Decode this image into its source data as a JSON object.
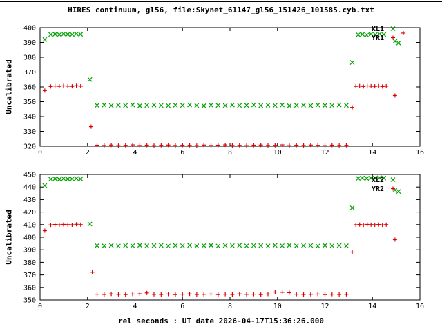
{
  "title": "HIRES continuum, gl56, file:Skynet_61147_gl56_151426_101585.cyb.txt",
  "xlabel": "rel seconds : UT date 2026-04-17T15:36:26.000",
  "colors": {
    "green": "#00a000",
    "red": "#e00000",
    "axis": "#000000",
    "background": "#ffffff"
  },
  "chart_data": [
    {
      "type": "scatter",
      "ylabel": "Uncalibrated",
      "xlim": [
        0,
        16
      ],
      "xtick_step": 2,
      "ylim": [
        320,
        400
      ],
      "ytick_step": 10,
      "grid": false,
      "legend_position": "top-right",
      "series": [
        {
          "name": "XL1",
          "marker": "x",
          "color": "#00a000",
          "points": [
            [
              0.2,
              392
            ],
            [
              0.45,
              395.4
            ],
            [
              0.63,
              395.6
            ],
            [
              0.81,
              395.3
            ],
            [
              0.99,
              395.7
            ],
            [
              1.17,
              395.5
            ],
            [
              1.35,
              395.4
            ],
            [
              1.53,
              395.8
            ],
            [
              1.71,
              395.5
            ],
            [
              2.1,
              365
            ],
            [
              2.4,
              347.6
            ],
            [
              2.7,
              347.8
            ],
            [
              3.0,
              347.4
            ],
            [
              3.3,
              347.7
            ],
            [
              3.6,
              347.5
            ],
            [
              3.9,
              347.9
            ],
            [
              4.2,
              347.3
            ],
            [
              4.5,
              347.6
            ],
            [
              4.8,
              347.8
            ],
            [
              5.1,
              347.5
            ],
            [
              5.4,
              347.4
            ],
            [
              5.7,
              347.7
            ],
            [
              6.0,
              347.6
            ],
            [
              6.3,
              347.9
            ],
            [
              6.6,
              347.5
            ],
            [
              6.9,
              347.3
            ],
            [
              7.2,
              347.7
            ],
            [
              7.5,
              347.6
            ],
            [
              7.8,
              347.4
            ],
            [
              8.1,
              347.8
            ],
            [
              8.4,
              347.5
            ],
            [
              8.7,
              347.6
            ],
            [
              9.0,
              347.9
            ],
            [
              9.3,
              347.4
            ],
            [
              9.6,
              347.7
            ],
            [
              9.9,
              347.5
            ],
            [
              10.2,
              347.8
            ],
            [
              10.5,
              347.3
            ],
            [
              10.8,
              347.6
            ],
            [
              11.1,
              347.7
            ],
            [
              11.4,
              347.4
            ],
            [
              11.7,
              347.8
            ],
            [
              12.0,
              347.6
            ],
            [
              12.3,
              347.5
            ],
            [
              12.6,
              347.9
            ],
            [
              12.9,
              347.6
            ],
            [
              13.15,
              376.5
            ],
            [
              13.4,
              395.2
            ],
            [
              13.58,
              395.5
            ],
            [
              13.76,
              395.0
            ],
            [
              13.94,
              395.6
            ],
            [
              14.12,
              395.3
            ],
            [
              14.3,
              395.7
            ],
            [
              14.48,
              395.4
            ],
            [
              14.95,
              390.8
            ],
            [
              15.1,
              389.6
            ]
          ]
        },
        {
          "name": "YR1",
          "marker": "+",
          "color": "#e00000",
          "points": [
            [
              0.2,
              357.5
            ],
            [
              0.45,
              360.3
            ],
            [
              0.63,
              360.6
            ],
            [
              0.81,
              360.4
            ],
            [
              0.99,
              360.7
            ],
            [
              1.17,
              360.5
            ],
            [
              1.35,
              360.4
            ],
            [
              1.53,
              360.8
            ],
            [
              1.71,
              360.5
            ],
            [
              2.15,
              333.2
            ],
            [
              2.4,
              320.7
            ],
            [
              2.7,
              320.5
            ],
            [
              3.0,
              320.8
            ],
            [
              3.3,
              320.4
            ],
            [
              3.6,
              320.6
            ],
            [
              3.9,
              320.9
            ],
            [
              4.2,
              320.5
            ],
            [
              4.5,
              320.7
            ],
            [
              4.8,
              320.4
            ],
            [
              5.1,
              320.6
            ],
            [
              5.4,
              320.8
            ],
            [
              5.7,
              320.5
            ],
            [
              6.0,
              320.7
            ],
            [
              6.3,
              320.6
            ],
            [
              6.6,
              320.4
            ],
            [
              6.9,
              320.8
            ],
            [
              7.2,
              320.5
            ],
            [
              7.5,
              320.7
            ],
            [
              7.8,
              320.9
            ],
            [
              8.1,
              320.5
            ],
            [
              8.4,
              320.6
            ],
            [
              8.7,
              320.4
            ],
            [
              9.0,
              320.7
            ],
            [
              9.3,
              320.8
            ],
            [
              9.6,
              320.5
            ],
            [
              9.9,
              320.6
            ],
            [
              10.2,
              320.9
            ],
            [
              10.5,
              320.4
            ],
            [
              10.8,
              320.7
            ],
            [
              11.1,
              320.5
            ],
            [
              11.4,
              320.8
            ],
            [
              11.7,
              320.6
            ],
            [
              12.0,
              320.4
            ],
            [
              12.3,
              320.7
            ],
            [
              12.6,
              320.5
            ],
            [
              12.9,
              320.6
            ],
            [
              13.15,
              346.2
            ],
            [
              13.3,
              360.4
            ],
            [
              13.46,
              360.6
            ],
            [
              13.62,
              360.3
            ],
            [
              13.78,
              360.7
            ],
            [
              13.94,
              360.5
            ],
            [
              14.1,
              360.4
            ],
            [
              14.26,
              360.6
            ],
            [
              14.42,
              360.3
            ],
            [
              14.58,
              360.5
            ],
            [
              14.95,
              354.2
            ],
            [
              15.3,
              396.3
            ]
          ]
        }
      ]
    },
    {
      "type": "scatter",
      "ylabel": "Uncalibrated",
      "xlim": [
        0,
        16
      ],
      "xtick_step": 2,
      "ylim": [
        350,
        450
      ],
      "ytick_step": 10,
      "grid": false,
      "legend_position": "top-right",
      "series": [
        {
          "name": "XL2",
          "marker": "x",
          "color": "#00a000",
          "points": [
            [
              0.2,
              441.2
            ],
            [
              0.45,
              446.3
            ],
            [
              0.63,
              446.6
            ],
            [
              0.81,
              446.2
            ],
            [
              0.99,
              446.7
            ],
            [
              1.17,
              446.4
            ],
            [
              1.35,
              446.5
            ],
            [
              1.53,
              446.8
            ],
            [
              1.71,
              446.4
            ],
            [
              2.1,
              410.5
            ],
            [
              2.4,
              393.3
            ],
            [
              2.7,
              393.1
            ],
            [
              3.0,
              393.5
            ],
            [
              3.3,
              393.0
            ],
            [
              3.6,
              393.4
            ],
            [
              3.9,
              393.2
            ],
            [
              4.2,
              393.6
            ],
            [
              4.5,
              393.1
            ],
            [
              4.8,
              393.3
            ],
            [
              5.1,
              393.5
            ],
            [
              5.4,
              393.0
            ],
            [
              5.7,
              393.4
            ],
            [
              6.0,
              393.2
            ],
            [
              6.3,
              393.5
            ],
            [
              6.6,
              393.1
            ],
            [
              6.9,
              393.3
            ],
            [
              7.2,
              393.6
            ],
            [
              7.5,
              393.0
            ],
            [
              7.8,
              393.4
            ],
            [
              8.1,
              393.2
            ],
            [
              8.4,
              393.5
            ],
            [
              8.7,
              393.1
            ],
            [
              9.0,
              393.4
            ],
            [
              9.3,
              393.3
            ],
            [
              9.6,
              393.0
            ],
            [
              9.9,
              393.5
            ],
            [
              10.2,
              393.2
            ],
            [
              10.5,
              393.6
            ],
            [
              10.8,
              393.1
            ],
            [
              11.1,
              393.3
            ],
            [
              11.4,
              393.4
            ],
            [
              11.7,
              393.0
            ],
            [
              12.0,
              393.5
            ],
            [
              12.3,
              393.2
            ],
            [
              12.6,
              393.4
            ],
            [
              12.9,
              393.1
            ],
            [
              13.15,
              423.4
            ],
            [
              13.4,
              446.9
            ],
            [
              13.58,
              447.2
            ],
            [
              13.76,
              446.8
            ],
            [
              13.94,
              447.3
            ],
            [
              14.12,
              447.0
            ],
            [
              14.3,
              447.4
            ],
            [
              14.48,
              447.1
            ],
            [
              14.95,
              437.6
            ],
            [
              15.1,
              436.4
            ]
          ]
        },
        {
          "name": "YR2",
          "marker": "+",
          "color": "#e00000",
          "points": [
            [
              0.2,
              405.2
            ],
            [
              0.45,
              409.8
            ],
            [
              0.63,
              410.1
            ],
            [
              0.81,
              409.9
            ],
            [
              0.99,
              410.2
            ],
            [
              1.17,
              410.0
            ],
            [
              1.35,
              409.9
            ],
            [
              1.53,
              410.3
            ],
            [
              1.71,
              410.0
            ],
            [
              2.2,
              372.1
            ],
            [
              2.4,
              354.6
            ],
            [
              2.7,
              354.4
            ],
            [
              3.0,
              354.8
            ],
            [
              3.3,
              354.5
            ],
            [
              3.6,
              354.3
            ],
            [
              3.9,
              354.7
            ],
            [
              4.2,
              354.9
            ],
            [
              4.5,
              355.6
            ],
            [
              4.8,
              354.5
            ],
            [
              5.1,
              354.4
            ],
            [
              5.4,
              354.7
            ],
            [
              5.7,
              354.3
            ],
            [
              6.0,
              354.6
            ],
            [
              6.3,
              354.8
            ],
            [
              6.6,
              354.4
            ],
            [
              6.9,
              354.5
            ],
            [
              7.2,
              354.7
            ],
            [
              7.5,
              354.3
            ],
            [
              7.8,
              354.6
            ],
            [
              8.1,
              354.4
            ],
            [
              8.4,
              354.8
            ],
            [
              8.7,
              354.5
            ],
            [
              9.0,
              354.6
            ],
            [
              9.3,
              354.3
            ],
            [
              9.6,
              354.7
            ],
            [
              9.9,
              356.3
            ],
            [
              10.2,
              356.1
            ],
            [
              10.5,
              355.8
            ],
            [
              10.8,
              354.6
            ],
            [
              11.1,
              354.4
            ],
            [
              11.4,
              354.5
            ],
            [
              11.7,
              354.7
            ],
            [
              12.0,
              354.3
            ],
            [
              12.3,
              354.6
            ],
            [
              12.6,
              354.4
            ],
            [
              12.9,
              354.5
            ],
            [
              13.15,
              388.2
            ],
            [
              13.3,
              409.9
            ],
            [
              13.46,
              410.1
            ],
            [
              13.62,
              409.8
            ],
            [
              13.78,
              410.2
            ],
            [
              13.94,
              410.0
            ],
            [
              14.1,
              409.9
            ],
            [
              14.26,
              410.1
            ],
            [
              14.42,
              409.8
            ],
            [
              14.58,
              410.0
            ],
            [
              14.95,
              398.1
            ]
          ]
        }
      ]
    }
  ]
}
